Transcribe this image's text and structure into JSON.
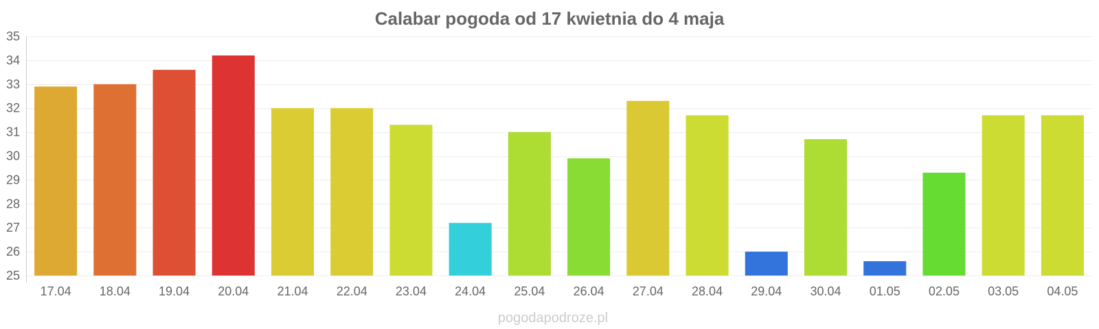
{
  "chart_data": {
    "type": "bar",
    "title": "Calabar pogoda od 17 kwietnia do 4 maja",
    "xlabel": "",
    "ylabel": "",
    "ylim": [
      25,
      35
    ],
    "yticks": [
      25,
      26,
      27,
      28,
      29,
      30,
      31,
      32,
      33,
      34,
      35
    ],
    "grid": true,
    "categories": [
      "17.04",
      "18.04",
      "19.04",
      "20.04",
      "21.04",
      "22.04",
      "23.04",
      "24.04",
      "25.04",
      "26.04",
      "27.04",
      "28.04",
      "29.04",
      "30.04",
      "01.05",
      "02.05",
      "03.05",
      "04.05"
    ],
    "values": [
      32.9,
      33.0,
      33.6,
      34.2,
      32.0,
      32.0,
      31.3,
      27.2,
      31.0,
      29.9,
      32.3,
      31.7,
      26.0,
      30.7,
      25.6,
      29.3,
      31.7,
      31.7
    ],
    "colors": [
      "#dda933",
      "#df7033",
      "#de5033",
      "#dd3333",
      "#dbcc33",
      "#dbcc33",
      "#cddc33",
      "#33d0dc",
      "#addc33",
      "#89dc33",
      "#dbc933",
      "#cddc33",
      "#3374dc",
      "#addc33",
      "#3374dc",
      "#66dc33",
      "#cddc33",
      "#cddc33"
    ]
  },
  "watermark": "pogodapodroze.pl"
}
